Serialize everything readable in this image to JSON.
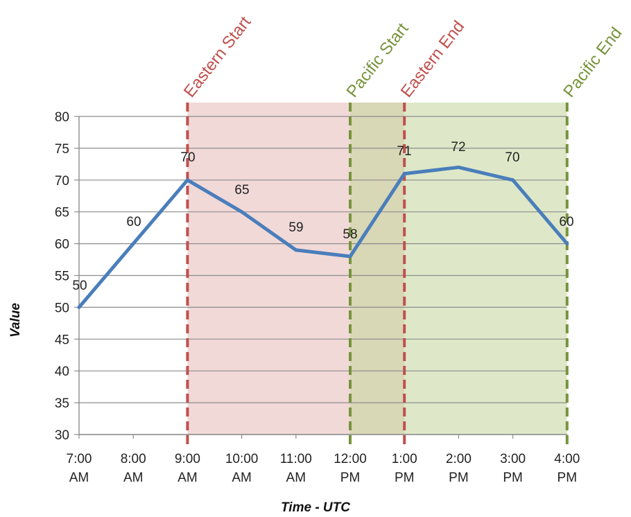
{
  "chart_data": {
    "type": "line",
    "xlabel": "Time - UTC",
    "ylabel": "Value",
    "ylim": [
      30,
      80
    ],
    "yticks": [
      30,
      35,
      40,
      45,
      50,
      55,
      60,
      65,
      70,
      75,
      80
    ],
    "grid": true,
    "categories": [
      [
        "7:00",
        "AM"
      ],
      [
        "8:00",
        "AM"
      ],
      [
        "9:00",
        "AM"
      ],
      [
        "10:00",
        "AM"
      ],
      [
        "11:00",
        "AM"
      ],
      [
        "12:00",
        "PM"
      ],
      [
        "1:00",
        "PM"
      ],
      [
        "2:00",
        "PM"
      ],
      [
        "3:00",
        "PM"
      ],
      [
        "4:00",
        "PM"
      ]
    ],
    "series": [
      {
        "values": [
          50,
          60,
          70,
          65,
          59,
          58,
          71,
          72,
          70,
          60
        ],
        "color": "#4a7ebb"
      }
    ],
    "data_labels": [
      "50",
      "60",
      "70",
      "65",
      "59",
      "58",
      "71",
      "72",
      "70",
      "60"
    ],
    "markers": [
      {
        "label": "Eastern Start",
        "at": "9:00 AM",
        "color": "#c0504d"
      },
      {
        "label": "Pacific Start",
        "at": "12:00 PM",
        "color": "#77933c"
      },
      {
        "label": "Eastern End",
        "at": "1:00 PM",
        "color": "#c0504d"
      },
      {
        "label": "Pacific End",
        "at": "4:00 PM",
        "color": "#77933c"
      }
    ],
    "regions": [
      {
        "from": "9:00 AM",
        "to": "1:00 PM",
        "color": "#e6b9b8"
      },
      {
        "from": "12:00 PM",
        "to": "4:00 PM",
        "color": "#c3d69b"
      }
    ]
  }
}
